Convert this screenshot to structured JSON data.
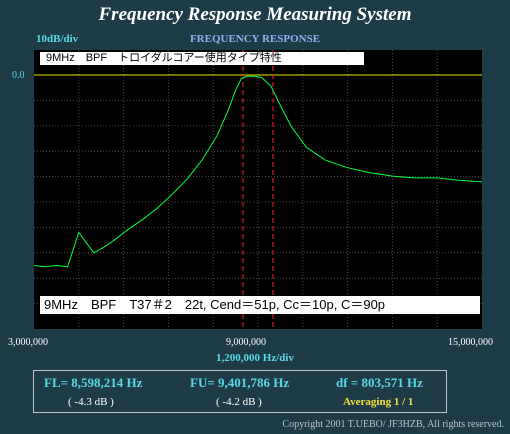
{
  "window": {
    "title": "Frequency Response Measuring System"
  },
  "graph": {
    "title": "FREQUENCY RESPONSE",
    "scale_label": "10dB/div",
    "ref_level": "0.0",
    "caption_top": "9MHz　BPF　トロイダルコアー使用タイプ特性",
    "caption_bottom": "9MHz　BPF　T37＃2　22t, Cend＝51p, Cc＝10p, C＝90p",
    "x_start": "3,000,000",
    "x_center": "9,000,000",
    "x_end": "15,000,000",
    "x_unit": "1,200,000  Hz/div"
  },
  "measurement": {
    "fl": "FL= 8,598,214  Hz",
    "fl_db": "( -4.3 dB )",
    "fu": "FU= 9,401,786  Hz",
    "fu_db": "( -4.2 dB )",
    "df": "df = 803,571  Hz",
    "averaging": "Averaging    1 / 1"
  },
  "footer": {
    "copyright": "Copyright 2001 T.UEBO/ JF3HZB, All rights reserved."
  },
  "colors": {
    "background": "#1d3c48",
    "plot_bg": "#000000",
    "grid": "#4a4a4a",
    "trace": "#00ff3c",
    "marker": "#ff2020",
    "reference": "#e8e800",
    "accent_text": "#5ad8e8"
  },
  "chart_data": {
    "type": "line",
    "title": "FREQUENCY RESPONSE",
    "xlabel": "1,200,000  Hz/div",
    "ylabel": "10dB/div",
    "xlim": [
      3000000,
      15000000
    ],
    "ylim": [
      -100,
      0
    ],
    "grid": true,
    "reference_level_db": 0.0,
    "markers_hz": [
      8598214,
      9401786
    ],
    "x_ticks": [
      "3,000,000",
      "9,000,000",
      "15,000,000"
    ],
    "series": [
      {
        "x": [
          3000000,
          3300000,
          3600000,
          3900000,
          4200000,
          4600000,
          4850000,
          5000000,
          5200000,
          5500000,
          5900000,
          6300000,
          6700000,
          7100000,
          7500000,
          7900000,
          8200000,
          8400000,
          8550000,
          8700000,
          8900000,
          9100000,
          9350000,
          9600000,
          9900000,
          10300000,
          10800000,
          11400000,
          12000000,
          12600000,
          13200000,
          13800000,
          14400000,
          15000000
        ],
        "y": [
          -75,
          -75.5,
          -75,
          -75.5,
          -62,
          -70,
          -68,
          -66.5,
          -64.5,
          -61,
          -57,
          -52.5,
          -47,
          -41,
          -33.5,
          -24,
          -14,
          -6,
          -1.5,
          -0.5,
          -0.5,
          -1,
          -4.5,
          -12,
          -20.5,
          -28.5,
          -33.5,
          -36.5,
          -38.5,
          -39.8,
          -40.5,
          -40.5,
          -41.5,
          -42
        ]
      }
    ]
  }
}
